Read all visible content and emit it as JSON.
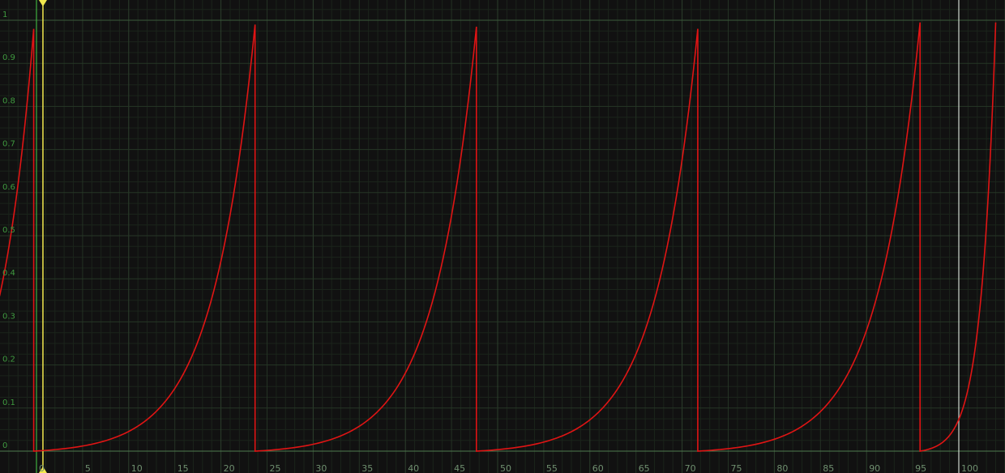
{
  "chart_data": {
    "type": "line",
    "title": "",
    "xlabel": "",
    "ylabel": "",
    "xlim": [
      -4,
      104
    ],
    "ylim": [
      0,
      1
    ],
    "grid": true,
    "x_ticks": [
      "0",
      "5",
      "10",
      "15",
      "20",
      "25",
      "30",
      "35",
      "40",
      "45",
      "50",
      "55",
      "60",
      "65",
      "70",
      "75",
      "80",
      "85",
      "90",
      "95",
      "100"
    ],
    "y_ticks": [
      "0",
      "0.1",
      "0.2",
      "0.3",
      "0.4",
      "0.5",
      "0.6",
      "0.7",
      "0.8",
      "0.9",
      "1"
    ],
    "series": [
      {
        "color": "#e01414",
        "segments": [
          {
            "x_start": -4,
            "x_end": -0.3,
            "y_start": 0.36,
            "y_peak": 0.98
          },
          {
            "x_start": -0.3,
            "x_end": 23.7,
            "y_start": 0.0,
            "y_peak": 0.99
          },
          {
            "x_start": 23.7,
            "x_end": 47.7,
            "y_start": 0.0,
            "y_peak": 0.985
          },
          {
            "x_start": 47.7,
            "x_end": 71.7,
            "y_start": 0.0,
            "y_peak": 0.98
          },
          {
            "x_start": 71.7,
            "x_end": 95.8,
            "y_start": 0.0,
            "y_peak": 0.995
          },
          {
            "x_start": 95.8,
            "x_end": 104,
            "y_start": 0.0,
            "y_peak": 0.995
          }
        ]
      }
    ],
    "cursors": [
      {
        "name": "playhead",
        "x": 0.7,
        "color": "#f2e94e"
      },
      {
        "name": "range-start",
        "x": 0,
        "color": "#3fb03f"
      },
      {
        "name": "range-end",
        "x": 100,
        "color": "#cfd8cf"
      }
    ]
  }
}
